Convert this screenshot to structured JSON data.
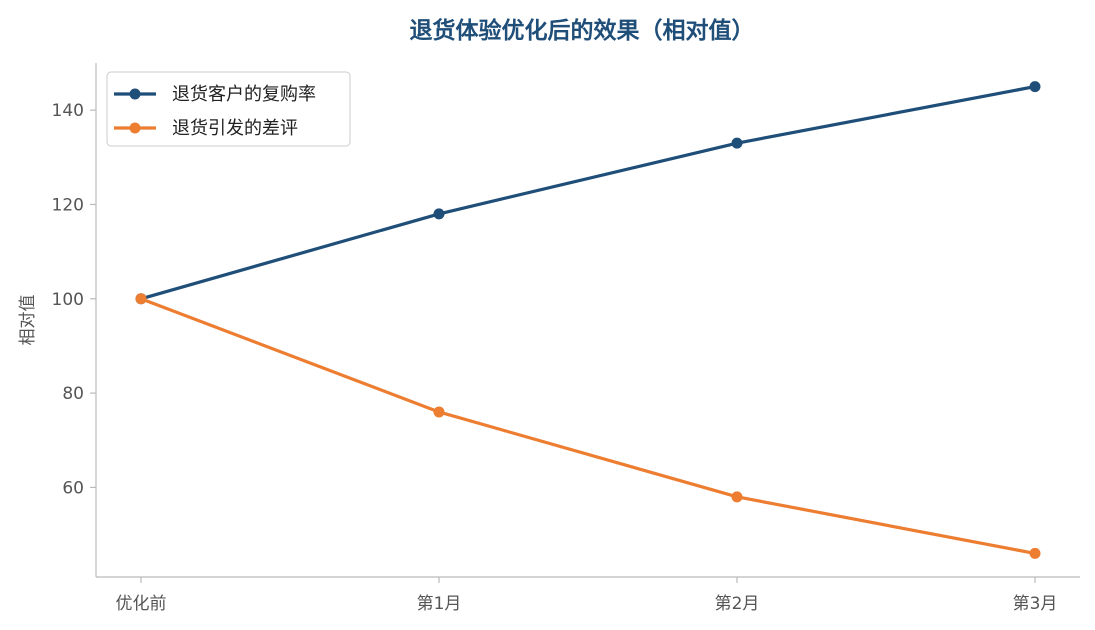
{
  "chart_data": {
    "type": "line",
    "title": "退货体验优化后的效果（相对值）",
    "xlabel": "",
    "ylabel": "相对值",
    "categories": [
      "优化前",
      "第1月",
      "第2月",
      "第3月"
    ],
    "ylim": [
      41,
      150
    ],
    "yticks": [
      60,
      80,
      100,
      120,
      140
    ],
    "grid": false,
    "legend_position": "upper-left",
    "series": [
      {
        "name": "退货客户的复购率",
        "values": [
          100,
          118,
          133,
          145
        ],
        "color": "#1f4e79",
        "marker": "circle"
      },
      {
        "name": "退货引发的差评",
        "values": [
          100,
          76,
          58,
          46
        ],
        "color": "#ed7d31",
        "marker": "circle"
      }
    ]
  }
}
